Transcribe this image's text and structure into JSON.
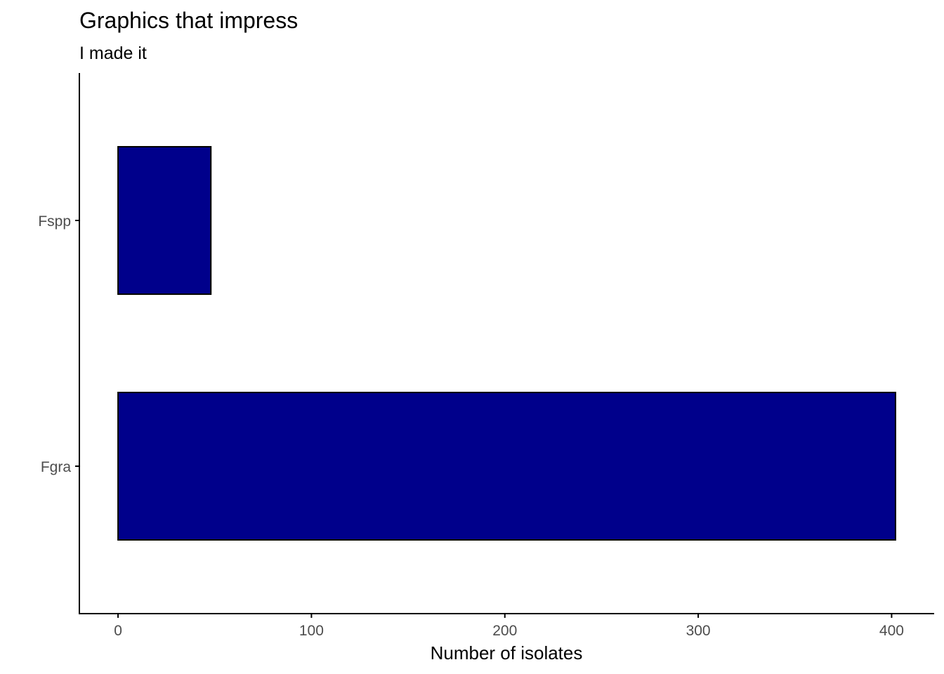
{
  "chart_data": {
    "type": "bar",
    "orientation": "horizontal",
    "title": "Graphics that impress",
    "subtitle": "I made it",
    "xlabel": "Number of isolates",
    "ylabel": "",
    "categories": [
      "Fspp",
      "Fgra"
    ],
    "values": [
      48,
      402
    ],
    "xlim": [
      -20,
      422
    ],
    "x_ticks": [
      0,
      100,
      200,
      300,
      400
    ],
    "bar_color": "#00008B",
    "bar_outline_color": "#000000",
    "grid": false,
    "legend": "none"
  }
}
